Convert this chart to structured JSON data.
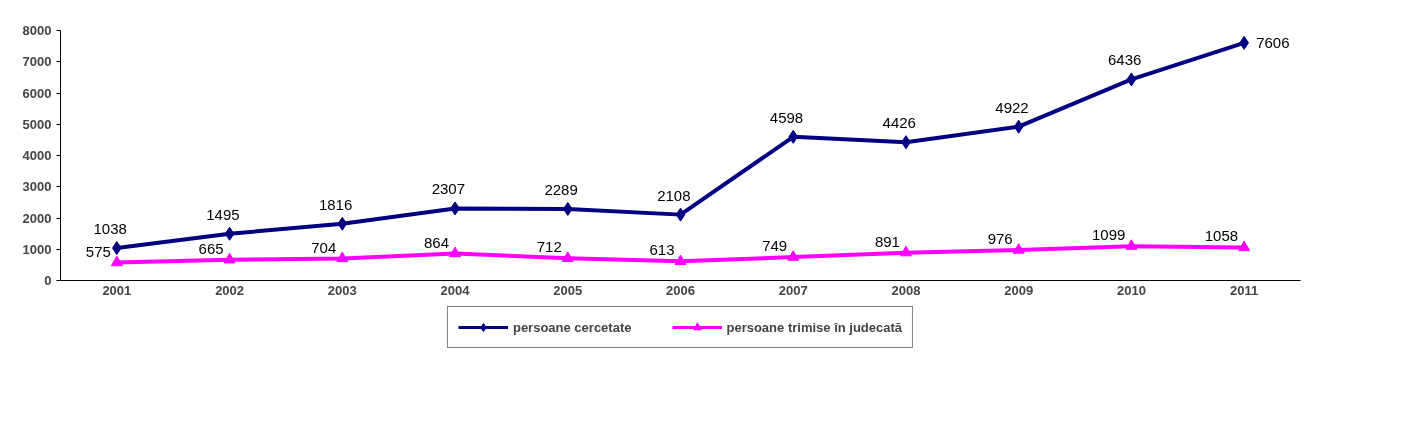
{
  "chart_data": {
    "type": "line",
    "categories": [
      "2001",
      "2002",
      "2003",
      "2004",
      "2005",
      "2006",
      "2007",
      "2008",
      "2009",
      "2010",
      "2011"
    ],
    "series": [
      {
        "name": "persoane cercetate",
        "color": "#000080",
        "marker": "diamond",
        "values": [
          1038,
          1495,
          1816,
          2307,
          2289,
          2108,
          4598,
          4426,
          4922,
          6436,
          7606
        ]
      },
      {
        "name": "persoane trimise în judecată",
        "color": "#ff00ff",
        "marker": "triangle",
        "values": [
          575,
          665,
          704,
          864,
          712,
          613,
          749,
          891,
          976,
          1099,
          1058
        ]
      }
    ],
    "ylim": [
      0,
      8000
    ],
    "yticks": [
      0,
      1000,
      2000,
      3000,
      4000,
      5000,
      6000,
      7000,
      8000
    ],
    "data_labels": true,
    "legend": "bottom",
    "grid": false,
    "line_style": "solid"
  }
}
